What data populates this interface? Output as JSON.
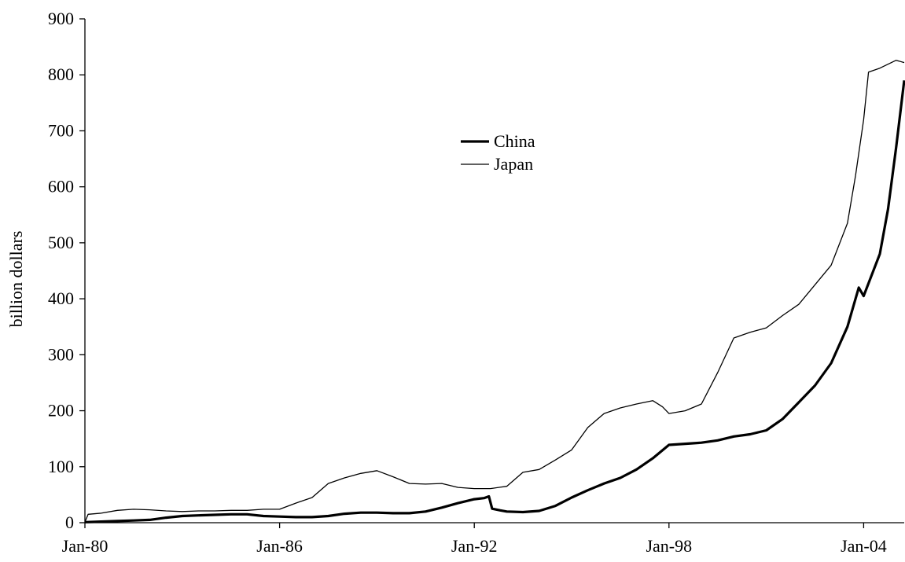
{
  "chart_data": {
    "type": "line",
    "title": "",
    "xlabel": "",
    "ylabel": "billion dollars",
    "xlim": [
      1980.0,
      2005.25
    ],
    "ylim": [
      0,
      900
    ],
    "yticks": [
      0,
      100,
      200,
      300,
      400,
      500,
      600,
      700,
      800,
      900
    ],
    "xticks": [
      {
        "x": 1980,
        "label": "Jan-80"
      },
      {
        "x": 1986,
        "label": "Jan-86"
      },
      {
        "x": 1992,
        "label": "Jan-92"
      },
      {
        "x": 1998,
        "label": "Jan-98"
      },
      {
        "x": 2004,
        "label": "Jan-04"
      }
    ],
    "grid": false,
    "legend_position": "upper-center",
    "series": [
      {
        "name": "China",
        "color": "#000000",
        "style": "thick",
        "points": [
          [
            1980.0,
            1
          ],
          [
            1980.5,
            2
          ],
          [
            1981.0,
            3
          ],
          [
            1981.5,
            4
          ],
          [
            1982.0,
            5
          ],
          [
            1982.5,
            9
          ],
          [
            1983.0,
            12
          ],
          [
            1983.5,
            13
          ],
          [
            1984.0,
            14
          ],
          [
            1984.5,
            15
          ],
          [
            1985.0,
            15
          ],
          [
            1985.5,
            12
          ],
          [
            1986.0,
            11
          ],
          [
            1986.5,
            10
          ],
          [
            1987.0,
            10
          ],
          [
            1987.5,
            12
          ],
          [
            1988.0,
            16
          ],
          [
            1988.5,
            18
          ],
          [
            1989.0,
            18
          ],
          [
            1989.5,
            17
          ],
          [
            1990.0,
            17
          ],
          [
            1990.5,
            20
          ],
          [
            1991.0,
            27
          ],
          [
            1991.5,
            35
          ],
          [
            1992.0,
            42
          ],
          [
            1992.3,
            44
          ],
          [
            1992.45,
            47
          ],
          [
            1992.55,
            25
          ],
          [
            1992.8,
            22
          ],
          [
            1993.0,
            20
          ],
          [
            1993.5,
            19
          ],
          [
            1994.0,
            21
          ],
          [
            1994.5,
            30
          ],
          [
            1995.0,
            45
          ],
          [
            1995.5,
            58
          ],
          [
            1996.0,
            70
          ],
          [
            1996.5,
            80
          ],
          [
            1997.0,
            95
          ],
          [
            1997.5,
            115
          ],
          [
            1998.0,
            139
          ],
          [
            1998.5,
            141
          ],
          [
            1999.0,
            143
          ],
          [
            1999.5,
            147
          ],
          [
            2000.0,
            154
          ],
          [
            2000.5,
            158
          ],
          [
            2001.0,
            165
          ],
          [
            2001.5,
            185
          ],
          [
            2002.0,
            215
          ],
          [
            2002.5,
            245
          ],
          [
            2003.0,
            285
          ],
          [
            2003.5,
            350
          ],
          [
            2003.85,
            420
          ],
          [
            2004.0,
            405
          ],
          [
            2004.5,
            480
          ],
          [
            2004.75,
            560
          ],
          [
            2005.0,
            670
          ],
          [
            2005.25,
            790
          ]
        ]
      },
      {
        "name": "Japan",
        "color": "#000000",
        "style": "thin",
        "points": [
          [
            1980.0,
            1
          ],
          [
            1980.1,
            15
          ],
          [
            1980.5,
            17
          ],
          [
            1981.0,
            22
          ],
          [
            1981.5,
            24
          ],
          [
            1982.0,
            23
          ],
          [
            1982.5,
            21
          ],
          [
            1983.0,
            20
          ],
          [
            1983.5,
            21
          ],
          [
            1984.0,
            21
          ],
          [
            1984.5,
            22
          ],
          [
            1985.0,
            22
          ],
          [
            1985.5,
            24
          ],
          [
            1986.0,
            24
          ],
          [
            1986.5,
            35
          ],
          [
            1987.0,
            45
          ],
          [
            1987.5,
            70
          ],
          [
            1988.0,
            80
          ],
          [
            1988.5,
            88
          ],
          [
            1989.0,
            93
          ],
          [
            1989.5,
            82
          ],
          [
            1990.0,
            70
          ],
          [
            1990.5,
            69
          ],
          [
            1991.0,
            70
          ],
          [
            1991.5,
            63
          ],
          [
            1992.0,
            61
          ],
          [
            1992.5,
            61
          ],
          [
            1993.0,
            65
          ],
          [
            1993.5,
            90
          ],
          [
            1994.0,
            95
          ],
          [
            1994.5,
            112
          ],
          [
            1995.0,
            130
          ],
          [
            1995.5,
            170
          ],
          [
            1996.0,
            195
          ],
          [
            1996.5,
            205
          ],
          [
            1997.0,
            212
          ],
          [
            1997.5,
            218
          ],
          [
            1997.8,
            207
          ],
          [
            1998.0,
            195
          ],
          [
            1998.5,
            200
          ],
          [
            1999.0,
            212
          ],
          [
            1999.5,
            268
          ],
          [
            2000.0,
            330
          ],
          [
            2000.5,
            340
          ],
          [
            2001.0,
            348
          ],
          [
            2001.5,
            370
          ],
          [
            2002.0,
            390
          ],
          [
            2002.5,
            425
          ],
          [
            2003.0,
            460
          ],
          [
            2003.5,
            535
          ],
          [
            2003.75,
            620
          ],
          [
            2004.0,
            720
          ],
          [
            2004.15,
            805
          ],
          [
            2004.5,
            812
          ],
          [
            2005.0,
            826
          ],
          [
            2005.25,
            822
          ]
        ]
      }
    ]
  }
}
